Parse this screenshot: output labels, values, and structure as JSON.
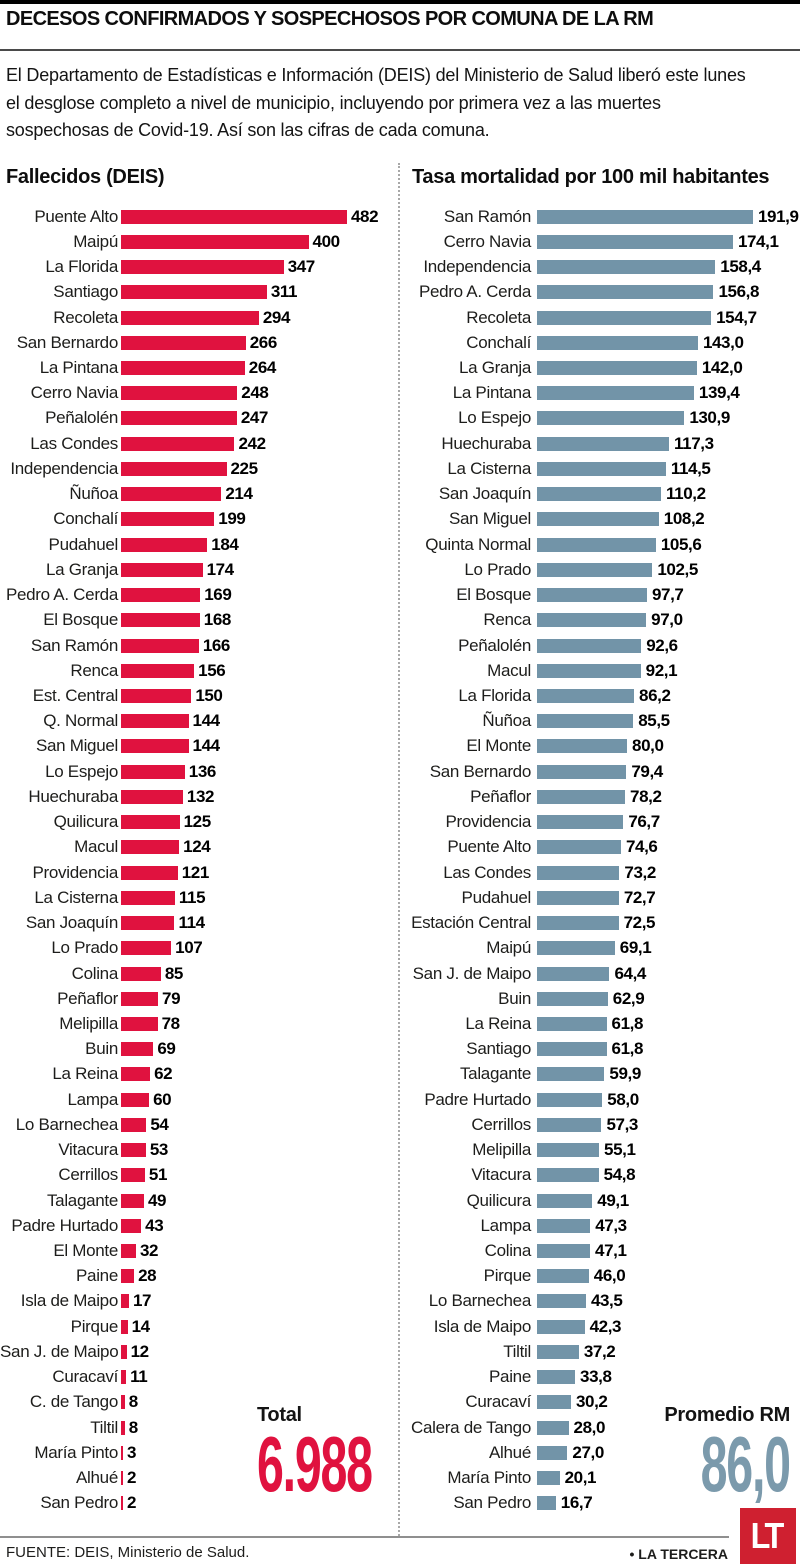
{
  "header": {
    "title": "DECESOS CONFIRMADOS Y SOSPECHOSOS POR COMUNA DE LA RM",
    "intro": "El Departamento de Estadísticas e Información (DEIS) del Ministerio de Salud liberó este lunes\nel desglose completo a nivel de municipio, incluyendo por primera vez a las muertes\nsospechosas de Covid-19. Así son las cifras de cada comuna."
  },
  "chart_data": [
    {
      "id": "fallecidos-deis",
      "type": "bar",
      "orientation": "horizontal",
      "title": "Fallecidos (DEIS)",
      "bar_color": "#e0123f",
      "value_format": "integer",
      "xlim": [
        0,
        482
      ],
      "categories": [
        "Puente Alto",
        "Maipú",
        "La Florida",
        "Santiago",
        "Recoleta",
        "San Bernardo",
        "La Pintana",
        "Cerro Navia",
        "Peñalolén",
        "Las Condes",
        "Independencia",
        "Ñuñoa",
        "Conchalí",
        "Pudahuel",
        "La Granja",
        "Pedro A. Cerda",
        "El Bosque",
        "San Ramón",
        "Renca",
        "Est. Central",
        "Q. Normal",
        "San Miguel",
        "Lo Espejo",
        "Huechuraba",
        "Quilicura",
        "Macul",
        "Providencia",
        "La Cisterna",
        "San Joaquín",
        "Lo Prado",
        "Colina",
        "Peñaflor",
        "Melipilla",
        "Buin",
        "La Reina",
        "Lampa",
        "Lo Barnechea",
        "Vitacura",
        "Cerrillos",
        "Talagante",
        "Padre Hurtado",
        "El Monte",
        "Paine",
        "Isla de Maipo",
        "Pirque",
        "San J. de Maipo",
        "Curacaví",
        "C. de Tango",
        "Tiltil",
        "María Pinto",
        "Alhué",
        "San Pedro"
      ],
      "values": [
        482,
        400,
        347,
        311,
        294,
        266,
        264,
        248,
        247,
        242,
        225,
        214,
        199,
        184,
        174,
        169,
        168,
        166,
        156,
        150,
        144,
        144,
        136,
        132,
        125,
        124,
        121,
        115,
        114,
        107,
        85,
        79,
        78,
        69,
        62,
        60,
        54,
        53,
        51,
        49,
        43,
        32,
        28,
        17,
        14,
        12,
        11,
        8,
        8,
        3,
        2,
        2
      ],
      "total_label": "Total",
      "total_value": "6.988"
    },
    {
      "id": "tasa-mortalidad",
      "type": "bar",
      "orientation": "horizontal",
      "title": "Tasa mortalidad por 100 mil habitantes",
      "bar_color": "#7294a8",
      "value_format": "decimal_comma_1",
      "xlim": [
        0,
        191.9
      ],
      "categories": [
        "San Ramón",
        "Cerro Navia",
        "Independencia",
        "Pedro A. Cerda",
        "Recoleta",
        "Conchalí",
        "La Granja",
        "La Pintana",
        "Lo Espejo",
        "Huechuraba",
        "La Cisterna",
        "San Joaquín",
        "San Miguel",
        "Quinta Normal",
        "Lo Prado",
        "El Bosque",
        "Renca",
        "Peñalolén",
        "Macul",
        "La Florida",
        "Ñuñoa",
        "El Monte",
        "San Bernardo",
        "Peñaflor",
        "Providencia",
        "Puente Alto",
        "Las Condes",
        "Pudahuel",
        "Estación Central",
        "Maipú",
        "San J. de Maipo",
        "Buin",
        "La Reina",
        "Santiago",
        "Talagante",
        "Padre Hurtado",
        "Cerrillos",
        "Melipilla",
        "Vitacura",
        "Quilicura",
        "Lampa",
        "Colina",
        "Pirque",
        "Lo Barnechea",
        "Isla de Maipo",
        "Tiltil",
        "Paine",
        "Curacaví",
        "Calera de Tango",
        "Alhué",
        "María Pinto",
        "San Pedro"
      ],
      "values": [
        191.9,
        174.1,
        158.4,
        156.8,
        154.7,
        143.0,
        142.0,
        139.4,
        130.9,
        117.3,
        114.5,
        110.2,
        108.2,
        105.6,
        102.5,
        97.7,
        97.0,
        92.6,
        92.1,
        86.2,
        85.5,
        80.0,
        79.4,
        78.2,
        76.7,
        74.6,
        73.2,
        72.7,
        72.5,
        69.1,
        64.4,
        62.9,
        61.8,
        61.8,
        59.9,
        58.0,
        57.3,
        55.1,
        54.8,
        49.1,
        47.3,
        47.1,
        46.0,
        43.5,
        42.3,
        37.2,
        33.8,
        30.2,
        28.0,
        27.0,
        20.1,
        16.7
      ],
      "average_label": "Promedio RM",
      "average_value": "86,0"
    }
  ],
  "footer": {
    "source": "FUENTE: DEIS, Ministerio de Salud.",
    "credit": "• LA TERCERA",
    "logo_text": "LT"
  },
  "colors": {
    "accent_red": "#e0123f",
    "accent_blue": "#7294a8",
    "logo_red": "#cf2030"
  }
}
